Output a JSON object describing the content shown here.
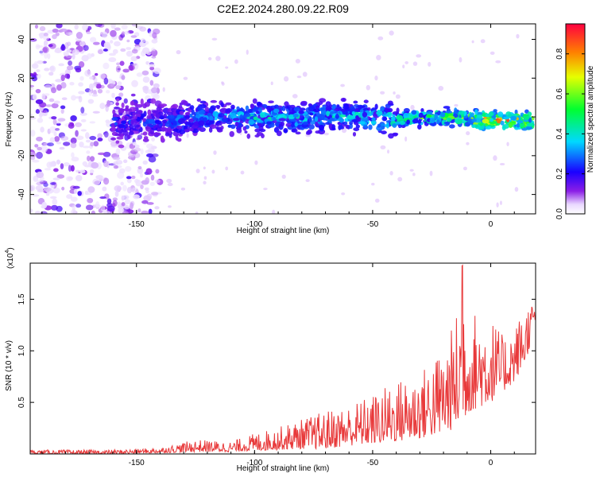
{
  "title": "C2E2.2024.280.09.22.R09",
  "chart_data": [
    {
      "type": "heatmap",
      "xlabel": "Height of straight line (km)",
      "ylabel": "Frequency (Hz)",
      "xlim": [
        -195,
        19
      ],
      "ylim": [
        -50,
        48
      ],
      "xticks": [
        -150,
        -100,
        -50,
        0
      ],
      "yticks": [
        -40,
        -20,
        0,
        20,
        40
      ],
      "colorbar": {
        "label": "Normalized spectral amplitude",
        "range": [
          0,
          0.95
        ],
        "ticks": [
          0.0,
          0.2,
          0.4,
          0.6,
          0.8
        ],
        "tick_labels": [
          "0.0",
          "0.2",
          "0.4",
          "0.6",
          "0.8"
        ]
      },
      "ridge": {
        "description_points_height_km": [
          -140,
          -120,
          -100,
          -80,
          -60,
          -40,
          -20,
          0,
          18
        ],
        "center_frequency_hz": [
          -3,
          0,
          0,
          -1,
          1,
          -1,
          0,
          -2,
          -2
        ],
        "peak_amplitude": [
          0.25,
          0.35,
          0.45,
          0.45,
          0.45,
          0.55,
          0.7,
          0.95,
          0.9
        ]
      },
      "noise_region_height_km": [
        -195,
        -140
      ]
    },
    {
      "type": "line",
      "xlabel": "Height of straight line (km)",
      "ylabel": "SNR (10 * v/v)",
      "multiplier_label": "(x10",
      "multiplier_exp": "4",
      "xlim": [
        -195,
        19
      ],
      "ylim": [
        0,
        1.85
      ],
      "xticks": [
        -150,
        -100,
        -50,
        0
      ],
      "yticks": [
        0.5,
        1.0,
        1.5
      ],
      "ytick_labels": [
        "0.5",
        "1.0",
        "1.5"
      ],
      "color": "#e8393a",
      "series": [
        {
          "x": [
            -195,
            -160,
            -140,
            -125,
            -110,
            -100,
            -90,
            -80,
            -70,
            -60,
            -50,
            -40,
            -30,
            -20,
            -15,
            -12,
            -10,
            -5,
            0,
            5,
            10,
            15,
            19
          ],
          "envelope_max": [
            0.04,
            0.04,
            0.06,
            0.14,
            0.12,
            0.2,
            0.26,
            0.34,
            0.42,
            0.48,
            0.58,
            0.72,
            0.8,
            1.05,
            1.3,
            1.85,
            1.38,
            1.4,
            1.35,
            1.15,
            1.25,
            1.45,
            1.5
          ],
          "envelope_min": [
            0.0,
            0.0,
            0.01,
            0.02,
            0.02,
            0.03,
            0.04,
            0.05,
            0.05,
            0.08,
            0.1,
            0.12,
            0.15,
            0.2,
            0.25,
            0.3,
            0.4,
            0.45,
            0.5,
            0.6,
            0.7,
            0.9,
            1.3
          ]
        }
      ]
    }
  ],
  "colors": {
    "axis": "#000000",
    "snr_line": "#e8393a"
  }
}
